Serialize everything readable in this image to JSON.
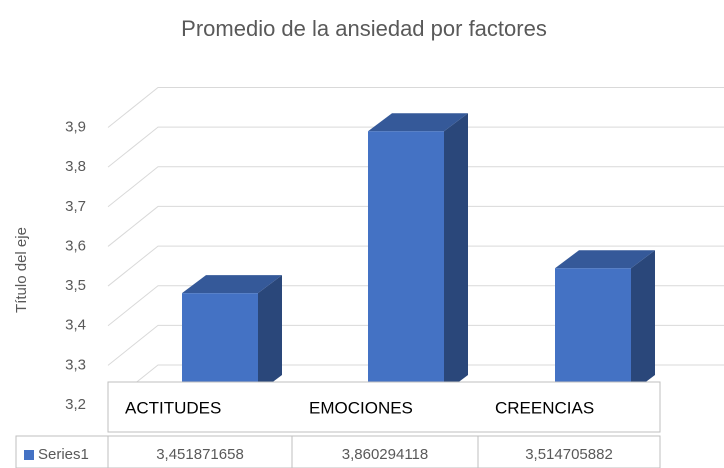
{
  "chart_data": {
    "type": "bar3d",
    "title": "Promedio de la ansiedad por factores",
    "y_axis_label": "Título del eje",
    "categories": [
      "ACTITUDES",
      "EMOCIONES",
      "CREENCIAS"
    ],
    "series": [
      {
        "name": "Series1",
        "color": "#4472c4",
        "values": [
          3.451871658,
          3.860294118,
          3.514705882
        ],
        "value_labels": [
          "3,451871658",
          "3,860294118",
          "3,514705882"
        ]
      }
    ],
    "ylim": [
      3.2,
      3.9
    ],
    "yticks": [
      {
        "value": 3.2,
        "label": "3,2"
      },
      {
        "value": 3.3,
        "label": "3,3"
      },
      {
        "value": 3.4,
        "label": "3,4"
      },
      {
        "value": 3.5,
        "label": "3,5"
      },
      {
        "value": 3.6,
        "label": "3,6"
      },
      {
        "value": 3.7,
        "label": "3,7"
      },
      {
        "value": 3.8,
        "label": "3,8"
      },
      {
        "value": 3.9,
        "label": "3,9"
      }
    ],
    "grid": true,
    "data_table": true
  }
}
